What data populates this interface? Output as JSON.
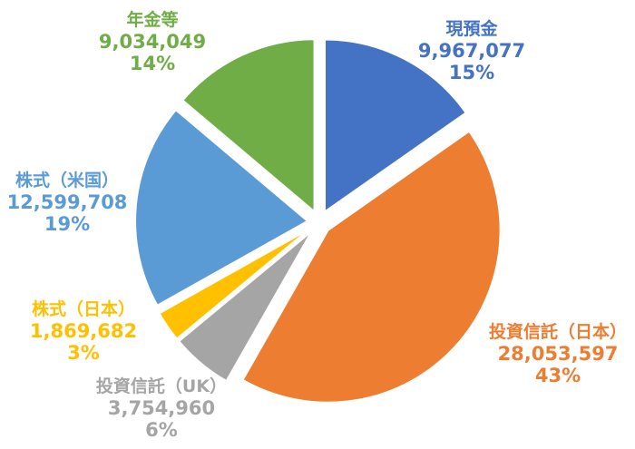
{
  "chart_data": {
    "type": "pie",
    "title": "",
    "slices": [
      {
        "label": "現預金",
        "value": 9967077,
        "value_text": "9,967,077",
        "percent": "15%",
        "color": "#4472C4"
      },
      {
        "label": "投資信託（日本）",
        "value": 28053597,
        "value_text": "28,053,597",
        "percent": "43%",
        "color": "#ED7D31"
      },
      {
        "label": "投資信託（UK）",
        "value": 3754960,
        "value_text": "3,754,960",
        "percent": "6%",
        "color": "#A5A5A5"
      },
      {
        "label": "株式（日本）",
        "value": 1869682,
        "value_text": "1,869,682",
        "percent": "3%",
        "color": "#FFC000"
      },
      {
        "label": "株式（米国）",
        "value": 12599708,
        "value_text": "12,599,708",
        "percent": "19%",
        "color": "#5B9BD5"
      },
      {
        "label": "年金等",
        "value": 9034049,
        "value_text": "9,034,049",
        "percent": "14%",
        "color": "#70AD47"
      }
    ],
    "legend": "none",
    "start_angle": "12 o'clock, clockwise"
  }
}
